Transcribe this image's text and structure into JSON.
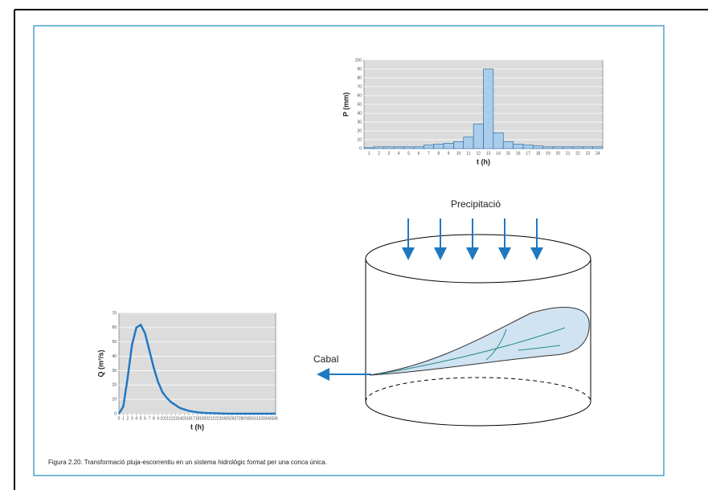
{
  "chart_data": [
    {
      "type": "bar",
      "categories": [
        "1",
        "2",
        "3",
        "4",
        "5",
        "6",
        "7",
        "8",
        "9",
        "10",
        "11",
        "12",
        "13",
        "14",
        "15",
        "16",
        "17",
        "18",
        "19",
        "20",
        "21",
        "22",
        "23",
        "24"
      ],
      "values": [
        1,
        2,
        2,
        2,
        2,
        2,
        4,
        5,
        6,
        8,
        13,
        28,
        90,
        18,
        8,
        5,
        4,
        3,
        2,
        2,
        2,
        2,
        2,
        2
      ],
      "color": "#a9cdea",
      "ylabel": "P (mm)",
      "xlabel": "t (h)",
      "ylim": [
        0,
        100
      ],
      "yticks": [
        0,
        10,
        20,
        30,
        40,
        50,
        60,
        70,
        80,
        90,
        100
      ],
      "grid": true
    },
    {
      "type": "line",
      "x": [
        0,
        1,
        2,
        3,
        4,
        5,
        6,
        7,
        8,
        9,
        10,
        11,
        12,
        13,
        14,
        15,
        16,
        17,
        18,
        19,
        20,
        21,
        22,
        23,
        24,
        25,
        26,
        27,
        28,
        29,
        30,
        31,
        32,
        33,
        34,
        35,
        36
      ],
      "values": [
        0,
        5,
        25,
        48,
        60,
        62,
        56,
        44,
        32,
        22,
        15,
        11,
        8,
        6,
        4,
        3,
        2,
        1.5,
        1,
        0.7,
        0.5,
        0.4,
        0.3,
        0.2,
        0.1,
        0,
        0,
        0,
        0,
        0,
        0,
        0,
        0,
        0,
        0,
        0,
        0
      ],
      "color": "#1f78c1",
      "ylabel": "Q (m³/s)",
      "xlabel": "t (h)",
      "xlim": [
        0,
        36
      ],
      "xticks": [
        0,
        1,
        2,
        3,
        4,
        5,
        6,
        7,
        8,
        9,
        10,
        11,
        12,
        13,
        14,
        15,
        16,
        17,
        18,
        19,
        20,
        21,
        22,
        23,
        24,
        25,
        26,
        27,
        28,
        29,
        30,
        31,
        32,
        33,
        34,
        35,
        36
      ],
      "ylim": [
        0,
        70
      ],
      "yticks": [
        0,
        10,
        20,
        30,
        40,
        50,
        60,
        70
      ],
      "grid": true
    }
  ],
  "diagram": {
    "precipitation_label": "Precipitació",
    "flow_label": "Cabal"
  },
  "caption": "Figura 2.20. Transformació pluja-escorrentiu en un sistema hidrològic format per una conca única."
}
